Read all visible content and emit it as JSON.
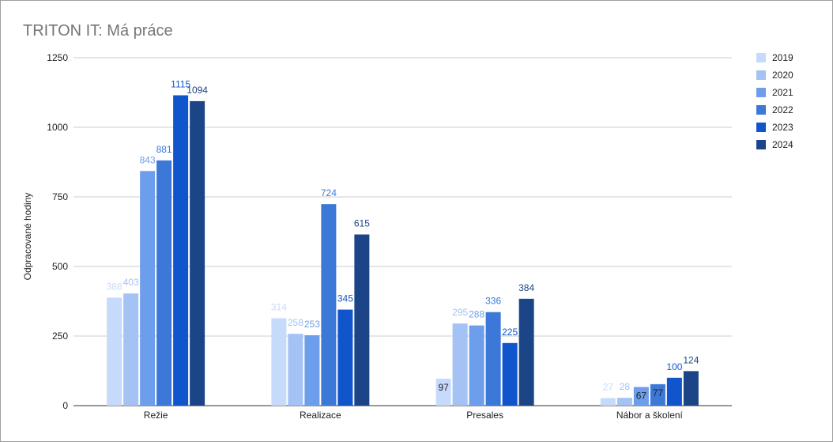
{
  "chart_data": {
    "type": "bar",
    "title": "TRITON IT: Má práce",
    "ylabel": "Odpracované hodiny",
    "xlabel": "",
    "ylim": [
      0,
      1250
    ],
    "yticks": [
      0,
      250,
      500,
      750,
      1000,
      1250
    ],
    "grid": true,
    "legend_position": "right",
    "categories": [
      "Režie",
      "Realizace",
      "Presales",
      "Nábor a školení"
    ],
    "series": [
      {
        "name": "2019",
        "color": "#c6dafc",
        "values": [
          388,
          314,
          97,
          27
        ]
      },
      {
        "name": "2020",
        "color": "#a4c2f4",
        "values": [
          403,
          258,
          295,
          28
        ]
      },
      {
        "name": "2021",
        "color": "#6d9eeb",
        "values": [
          843,
          253,
          288,
          67
        ]
      },
      {
        "name": "2022",
        "color": "#3c78d8",
        "values": [
          881,
          724,
          336,
          77
        ]
      },
      {
        "name": "2023",
        "color": "#1155cc",
        "values": [
          1115,
          345,
          225,
          100
        ]
      },
      {
        "name": "2024",
        "color": "#1c4587",
        "values": [
          1094,
          615,
          384,
          124
        ]
      }
    ]
  }
}
